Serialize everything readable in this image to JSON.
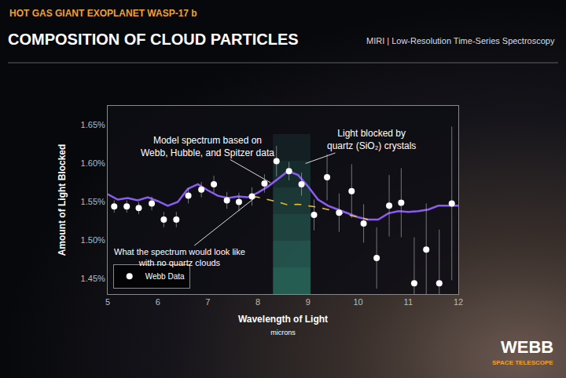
{
  "chart_data": {
    "type": "scatter",
    "subtitle": "HOT GAS GIANT EXOPLANET WASP-17 b",
    "title": "COMPOSITION OF CLOUD PARTICLES",
    "instrument_label": "MIRI | Low-Resolution Time-Series Spectroscopy",
    "x_label": "Wavelength of Light",
    "x_unit": "microns",
    "y_label": "Amount of Light Blocked",
    "xlim": [
      5,
      12
    ],
    "xticks": [
      5,
      6,
      7,
      8,
      9,
      10,
      11,
      12
    ],
    "ylim": [
      1.43,
      1.675
    ],
    "yticks": [
      {
        "value": 1.45,
        "label": "1.45%"
      },
      {
        "value": 1.5,
        "label": "1.50%"
      },
      {
        "value": 1.55,
        "label": "1.55%"
      },
      {
        "value": 1.6,
        "label": "1.60%"
      },
      {
        "value": 1.65,
        "label": "1.65%"
      }
    ],
    "grid": false,
    "legend": "lower left",
    "quartz_band": [
      8.3,
      9.05
    ],
    "series": [
      {
        "type": "line",
        "color": "#8a5cf0",
        "line_style": "solid",
        "x": [
          5.0,
          5.2,
          5.4,
          5.6,
          5.8,
          6.0,
          6.2,
          6.4,
          6.6,
          6.8,
          7.0,
          7.2,
          7.4,
          7.6,
          7.8,
          8.0,
          8.2,
          8.4,
          8.6,
          8.8,
          9.0,
          9.2,
          9.4,
          9.6,
          9.8,
          10.0,
          10.2,
          10.4,
          10.6,
          10.8,
          11.0,
          11.2,
          11.4,
          11.6,
          11.8,
          12.0
        ],
        "values": [
          1.56,
          1.553,
          1.555,
          1.552,
          1.556,
          1.551,
          1.545,
          1.55,
          1.567,
          1.573,
          1.565,
          1.558,
          1.555,
          1.557,
          1.556,
          1.562,
          1.57,
          1.58,
          1.59,
          1.585,
          1.57,
          1.553,
          1.545,
          1.54,
          1.535,
          1.53,
          1.527,
          1.527,
          1.535,
          1.538,
          1.537,
          1.538,
          1.54,
          1.545,
          1.545,
          1.545
        ]
      },
      {
        "type": "line",
        "color": "#e8c030",
        "line_style": "dashed",
        "x": [
          7.9,
          8.0,
          8.2,
          8.4,
          8.6,
          8.8,
          9.0,
          9.2,
          9.4,
          9.6,
          9.8,
          10.0,
          10.2
        ],
        "values": [
          1.557,
          1.556,
          1.553,
          1.55,
          1.546,
          1.547,
          1.545,
          1.543,
          1.54,
          1.537,
          1.533,
          1.53,
          1.527
        ]
      },
      {
        "name": "Webb Data",
        "type": "scatter",
        "color": "#ffffff",
        "marker": "circle",
        "x": [
          5.13,
          5.38,
          5.62,
          5.88,
          6.12,
          6.37,
          6.61,
          6.87,
          7.12,
          7.38,
          7.62,
          7.88,
          8.13,
          8.37,
          8.62,
          8.87,
          9.12,
          9.38,
          9.62,
          9.87,
          10.11,
          10.37,
          10.62,
          10.86,
          11.12,
          11.36,
          11.62,
          11.87
        ],
        "values": [
          1.544,
          1.544,
          1.542,
          1.548,
          1.527,
          1.527,
          1.558,
          1.566,
          1.573,
          1.552,
          1.55,
          1.557,
          1.574,
          1.603,
          1.59,
          1.573,
          1.533,
          1.582,
          1.536,
          1.564,
          1.522,
          1.477,
          1.545,
          1.549,
          1.444,
          1.488,
          1.444,
          1.548
        ],
        "errors": [
          0.008,
          0.008,
          0.008,
          0.009,
          0.01,
          0.01,
          0.01,
          0.01,
          0.011,
          0.011,
          0.012,
          0.012,
          0.012,
          0.02,
          0.012,
          0.015,
          0.02,
          0.03,
          0.025,
          0.035,
          0.025,
          0.04,
          0.04,
          0.045,
          0.06,
          0.06,
          0.07,
          0.1
        ]
      }
    ],
    "annotations": [
      {
        "lines": [
          "Model spectrum based on",
          "Webb, Hubble, and Spitzer data"
        ],
        "x": 8.25,
        "y": 1.575
      },
      {
        "lines": [
          "Light blocked by",
          "quartz (SiO₂) crystals"
        ],
        "x": 8.95,
        "y": 1.6
      },
      {
        "lines": [
          "What the spectrum would look like",
          "with no quartz clouds"
        ],
        "x": 7.95,
        "y": 1.556
      }
    ],
    "logo": [
      "WEBB",
      "SPACE TELESCOPE"
    ]
  }
}
